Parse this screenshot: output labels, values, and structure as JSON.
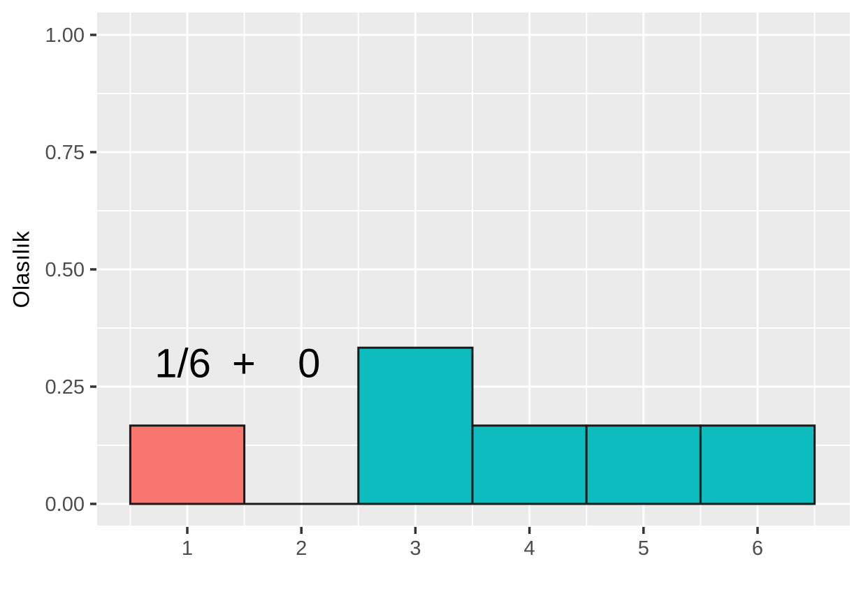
{
  "chart_data": {
    "type": "bar",
    "title": "",
    "xlabel": "",
    "ylabel": "Olasılık",
    "categories": [
      1,
      2,
      3,
      4,
      5,
      6
    ],
    "values": [
      0.167,
      0,
      0.333,
      0.167,
      0.167,
      0.167
    ],
    "bar_fills": [
      "#F8766D",
      "none",
      "#0DBCBE",
      "#0DBCBE",
      "#0DBCBE",
      "#0DBCBE"
    ],
    "bar_width": 1,
    "x_ticks": [
      "1",
      "2",
      "3",
      "4",
      "5",
      "6"
    ],
    "y_ticks": [
      {
        "label": "0.00",
        "value": 0
      },
      {
        "label": "0.25",
        "value": 0.25
      },
      {
        "label": "0.50",
        "value": 0.5
      },
      {
        "label": "0.75",
        "value": 0.75
      },
      {
        "label": "1.00",
        "value": 1
      }
    ],
    "y_minor_ticks": [
      0.125,
      0.375,
      0.625,
      0.875
    ],
    "x_minor_ticks": [
      0.5,
      1.5,
      2.5,
      3.5,
      4.5,
      5.5,
      6.5
    ],
    "xlim": [
      0.2,
      6.8
    ],
    "ylim": [
      -0.05,
      1.05
    ],
    "grid": "white major+minor gridlines on gray panel",
    "legend": "none",
    "annotation": {
      "text": "1/6 +  0",
      "x": 1.44,
      "y": 0.3
    }
  },
  "colors": {
    "page_background": "#FFFFFF",
    "panel_background": "#EBEBEB",
    "grid_line": "#FFFFFF",
    "bar_outline": "#1A1A1A",
    "bar_red": "#F8766D",
    "bar_teal": "#0DBCBE",
    "tick_text": "#4D4D4D",
    "tick_mark": "#333333",
    "axis_title_text": "#000000",
    "annotation_text": "#000000"
  }
}
